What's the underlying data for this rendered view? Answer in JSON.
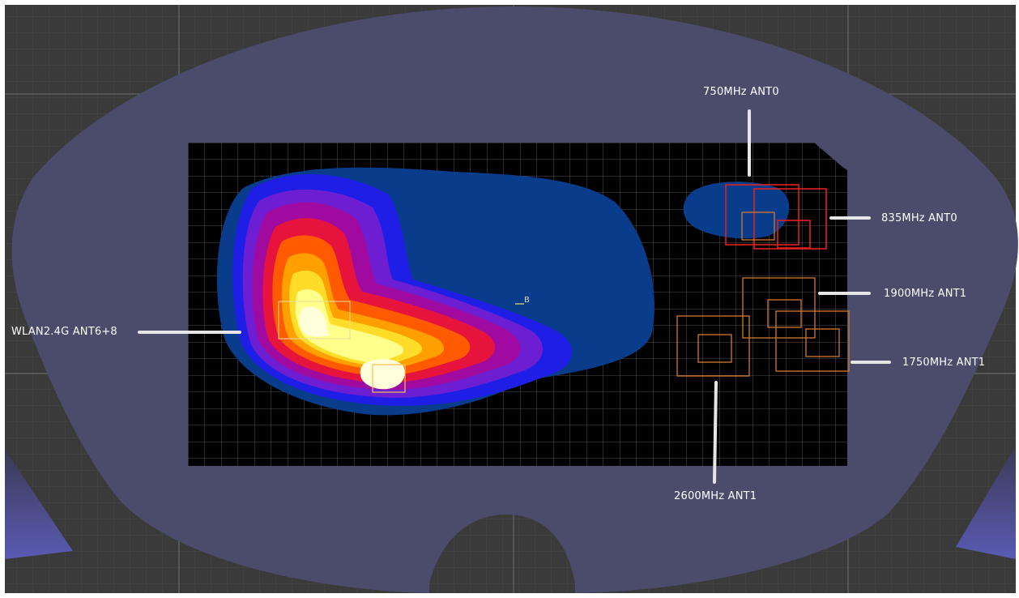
{
  "labels": {
    "wlan": "WLAN2.4G ANT6+8",
    "band_750": "750MHz ANT0",
    "band_835": "835MHz ANT0",
    "band_1900": "1900MHz ANT1",
    "band_1750": "1750MHz ANT1",
    "band_2600": "2600MHz ANT1",
    "center_marker": "B"
  },
  "colors": {
    "background": "#3a3a3a",
    "phantom": "#4b4b6c",
    "measurement_area": "#000000",
    "grid": "#5a5a5a",
    "heat_scale": [
      "#0a3c8c",
      "#1e1ee6",
      "#6e1ed2",
      "#a00aa0",
      "#e6143c",
      "#ff5a00",
      "#ffa000",
      "#ffdc28",
      "#ffff8c",
      "#ffffdc"
    ],
    "lte_low_band_box": "#e02020",
    "lte_mid_band_box": "#d2782d",
    "callout_line": "#e6e6e6"
  }
}
